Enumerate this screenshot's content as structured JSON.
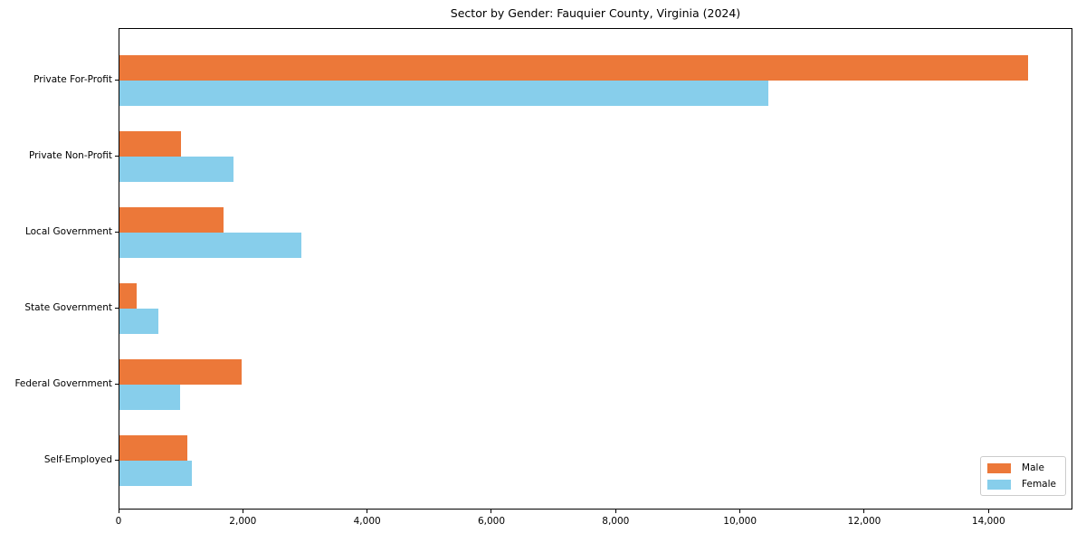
{
  "chart_data": {
    "type": "bar",
    "orientation": "horizontal",
    "title": "Sector by Gender: Fauquier County, Virginia (2024)",
    "categories": [
      "Private For-Profit",
      "Private Non-Profit",
      "Local Government",
      "State Government",
      "Federal Government",
      "Self-Employed"
    ],
    "series": [
      {
        "name": "Male",
        "color": "#EC7839",
        "values": [
          14620,
          990,
          1670,
          270,
          1970,
          1090
        ]
      },
      {
        "name": "Female",
        "color": "#87CEEB",
        "values": [
          10440,
          1840,
          2920,
          620,
          980,
          1160
        ]
      }
    ],
    "xlabel": "",
    "ylabel": "",
    "xlim": [
      0,
      15350
    ],
    "xticks": [
      {
        "value": 0,
        "label": "0"
      },
      {
        "value": 2000,
        "label": "2,000"
      },
      {
        "value": 4000,
        "label": "4,000"
      },
      {
        "value": 6000,
        "label": "6,000"
      },
      {
        "value": 8000,
        "label": "8,000"
      },
      {
        "value": 10000,
        "label": "10,000"
      },
      {
        "value": 12000,
        "label": "12,000"
      },
      {
        "value": 14000,
        "label": "14,000"
      }
    ],
    "grid": false,
    "legend": {
      "position": "lower right"
    },
    "spine_color": "#000000",
    "background_color": "#ffffff"
  }
}
